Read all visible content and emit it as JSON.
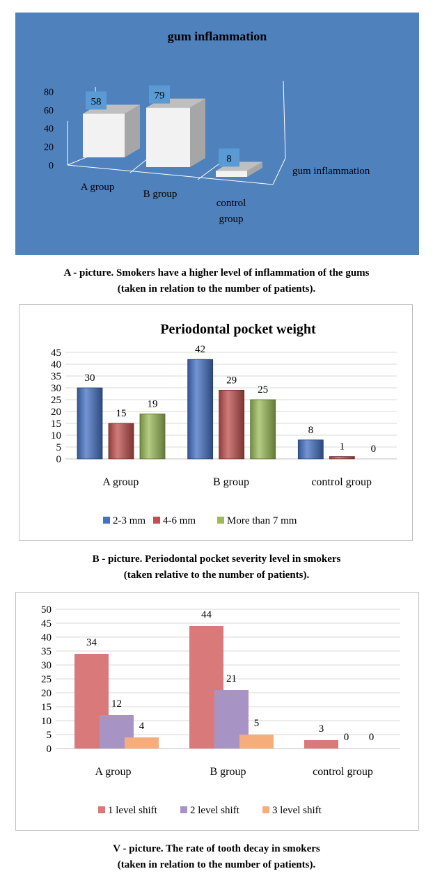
{
  "figureA": {
    "caption_line1": "A - picture. Smokers have a higher level of inflammation of the gums",
    "caption_line2": "(taken in relation to the number of patients).",
    "chart_data": {
      "type": "bar",
      "title": "gum inflammation",
      "categories": [
        "A group",
        "B group",
        "control group"
      ],
      "series": [
        {
          "name": "gum inflammation",
          "values": [
            58,
            79,
            8
          ]
        }
      ],
      "yticks": [
        0,
        20,
        40,
        60,
        80
      ],
      "ylim": [
        0,
        80
      ],
      "style": "3d",
      "colors": {
        "background": "#4f81bd",
        "bar_front": "#f2f2f2",
        "bar_side": "#a6a6a6",
        "label_box": "#5b9bd5"
      }
    }
  },
  "figureB": {
    "caption_line1": "B - picture. Periodontal pocket severity level in smokers",
    "caption_line2": "(taken relative to the number of patients).",
    "chart_data": {
      "type": "bar",
      "title": "Periodontal pocket weight",
      "categories": [
        "A group",
        "B group",
        "control group"
      ],
      "series": [
        {
          "name": "2-3 mm",
          "values": [
            30,
            42,
            8
          ],
          "color": "#4472c4"
        },
        {
          "name": "4-6 mm",
          "values": [
            15,
            29,
            1
          ],
          "color": "#c0504d"
        },
        {
          "name": "More than 7 mm",
          "values": [
            19,
            25,
            0
          ],
          "color": "#9bbb59"
        }
      ],
      "yticks": [
        0,
        5,
        10,
        15,
        20,
        25,
        30,
        35,
        40,
        45
      ],
      "ylim": [
        0,
        45
      ],
      "grid": true,
      "legend": "bottom"
    }
  },
  "figureV": {
    "caption_line1": "V - picture. The rate of tooth decay in smokers",
    "caption_line2": "(taken in relation to the number of patients).",
    "chart_data": {
      "type": "bar",
      "title": "",
      "categories": [
        "A group",
        "B group",
        "control group"
      ],
      "series": [
        {
          "name": "1 level shift",
          "values": [
            34,
            44,
            3
          ],
          "color": "#d9797a"
        },
        {
          "name": "2 level shift",
          "values": [
            12,
            21,
            0
          ],
          "color": "#a794c4"
        },
        {
          "name": "3 level shift",
          "values": [
            4,
            5,
            0
          ],
          "color": "#f5ad7b"
        }
      ],
      "yticks": [
        0,
        5,
        10,
        15,
        20,
        25,
        30,
        35,
        40,
        45,
        50
      ],
      "ylim": [
        0,
        50
      ],
      "grid": true,
      "legend": "bottom"
    }
  }
}
